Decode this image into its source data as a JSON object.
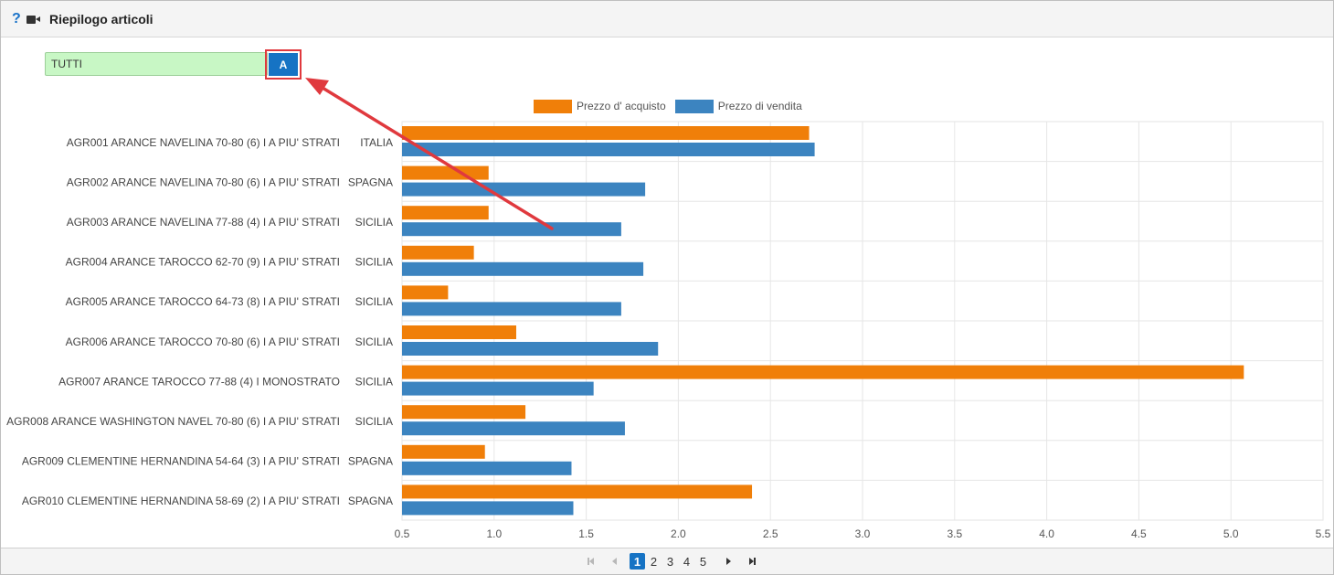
{
  "header": {
    "title": "Riepilogo articoli",
    "help_glyph": "?",
    "icons": [
      "help-icon",
      "video-camera-icon"
    ]
  },
  "filter": {
    "value": "TUTTI",
    "button_label": "A"
  },
  "colors": {
    "purchase": "#f07f09",
    "sale": "#3c84c0",
    "annotation": "#e0393e",
    "accent": "#1673c4"
  },
  "chart_data": {
    "type": "bar",
    "orientation": "horizontal",
    "categories": [
      {
        "label": "AGR001 ARANCE NAVELINA 70-80 (6) I A PIU' STRATI",
        "origin": "ITALIA"
      },
      {
        "label": "AGR002 ARANCE NAVELINA 70-80 (6) I A PIU' STRATI",
        "origin": "SPAGNA"
      },
      {
        "label": "AGR003 ARANCE NAVELINA 77-88 (4) I A PIU' STRATI",
        "origin": "SICILIA"
      },
      {
        "label": "AGR004 ARANCE TAROCCO 62-70 (9) I A PIU' STRATI",
        "origin": "SICILIA"
      },
      {
        "label": "AGR005 ARANCE TAROCCO 64-73 (8) I A PIU' STRATI",
        "origin": "SICILIA"
      },
      {
        "label": "AGR006 ARANCE TAROCCO 70-80 (6) I A PIU' STRATI",
        "origin": "SICILIA"
      },
      {
        "label": "AGR007 ARANCE TAROCCO 77-88 (4) I MONOSTRATO",
        "origin": "SICILIA"
      },
      {
        "label": "AGR008 ARANCE WASHINGTON NAVEL 70-80 (6) I A PIU' STRATI",
        "origin": "SICILIA"
      },
      {
        "label": "AGR009 CLEMENTINE HERNANDINA 54-64 (3) I A PIU' STRATI",
        "origin": "SPAGNA"
      },
      {
        "label": "AGR010 CLEMENTINE HERNANDINA 58-69 (2) I A PIU' STRATI",
        "origin": "SPAGNA"
      }
    ],
    "series": [
      {
        "name": "Prezzo d' acquisto",
        "color": "#f07f09",
        "values": [
          2.71,
          0.97,
          0.97,
          0.89,
          0.75,
          1.12,
          5.07,
          1.17,
          0.95,
          2.4
        ]
      },
      {
        "name": "Prezzo di vendita",
        "color": "#3c84c0",
        "values": [
          2.74,
          1.82,
          1.69,
          1.81,
          1.69,
          1.89,
          1.54,
          1.71,
          1.42,
          1.43
        ]
      }
    ],
    "xlim": [
      0.5,
      5.5
    ],
    "xticks": [
      "0.5",
      "1.0",
      "1.5",
      "2.0",
      "2.5",
      "3.0",
      "3.5",
      "4.0",
      "4.5",
      "5.0",
      "5.5"
    ],
    "grid": true,
    "legend": "top-center"
  },
  "pager": {
    "pages": [
      "1",
      "2",
      "3",
      "4",
      "5"
    ],
    "current": "1"
  }
}
